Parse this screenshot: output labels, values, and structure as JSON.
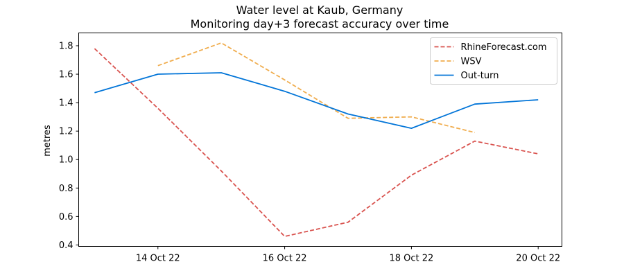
{
  "chart_data": {
    "type": "line",
    "title": "Water level at Kaub, Germany",
    "subtitle": "Monitoring day+3 forecast accuracy over time",
    "xlabel": "",
    "ylabel": "metres",
    "x": [
      "2022-10-13",
      "2022-10-14",
      "2022-10-15",
      "2022-10-16",
      "2022-10-17",
      "2022-10-18",
      "2022-10-19",
      "2022-10-20"
    ],
    "xlim": [
      "2022-10-12 18:00",
      "2022-10-20 09:00"
    ],
    "ylim": [
      0.39,
      1.89
    ],
    "x_ticks": [
      {
        "date": "2022-10-14",
        "label": "14 Oct 22"
      },
      {
        "date": "2022-10-16",
        "label": "16 Oct 22"
      },
      {
        "date": "2022-10-18",
        "label": "18 Oct 22"
      },
      {
        "date": "2022-10-20",
        "label": "20 Oct 22"
      }
    ],
    "y_ticks": [
      {
        "value": 0.4,
        "label": "0.4"
      },
      {
        "value": 0.6,
        "label": "0.6"
      },
      {
        "value": 0.8,
        "label": "0.8"
      },
      {
        "value": 1.0,
        "label": "1.0"
      },
      {
        "value": 1.2,
        "label": "1.2"
      },
      {
        "value": 1.4,
        "label": "1.4"
      },
      {
        "value": 1.6,
        "label": "1.6"
      },
      {
        "value": 1.8,
        "label": "1.8"
      }
    ],
    "grid": false,
    "legend_position": "top-right",
    "series": [
      {
        "name": "RhineForecast.com",
        "color": "#d9534f",
        "style": "dashed",
        "values": [
          1.78,
          1.36,
          0.92,
          0.46,
          0.56,
          0.89,
          1.13,
          1.04
        ]
      },
      {
        "name": "WSV",
        "color": "#f0ad4e",
        "style": "dashed",
        "values": [
          null,
          1.66,
          1.82,
          1.56,
          1.29,
          1.3,
          1.19,
          null
        ]
      },
      {
        "name": "Out-turn",
        "color": "#0275d8",
        "style": "solid",
        "values": [
          1.47,
          1.6,
          1.61,
          1.48,
          1.32,
          1.22,
          1.39,
          1.42
        ]
      }
    ]
  }
}
